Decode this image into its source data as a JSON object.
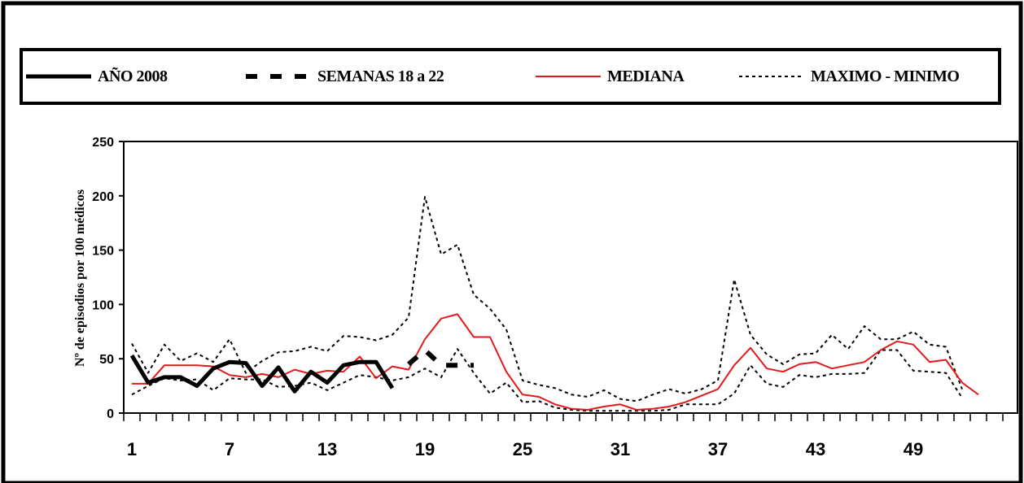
{
  "chart_data": {
    "type": "line",
    "ylabel": "Nº de episodios por 100 médicos",
    "xlabel": "",
    "ylim": [
      0,
      250
    ],
    "xlim": [
      1,
      53
    ],
    "y_ticks": [
      0,
      50,
      100,
      150,
      200,
      250
    ],
    "x_tick_labels": [
      "1",
      "7",
      "13",
      "19",
      "25",
      "31",
      "37",
      "43",
      "49"
    ],
    "grid": false,
    "legend_position": "top",
    "series": [
      {
        "name": "AÑO 2008",
        "style": "solid-thick",
        "color": "#000000",
        "x": [
          1,
          2,
          3,
          4,
          5,
          6,
          7,
          8,
          9,
          10,
          11,
          12,
          13,
          14,
          15,
          16,
          17
        ],
        "values": [
          53,
          28,
          33,
          33,
          25,
          41,
          47,
          46,
          25,
          42,
          20,
          38,
          28,
          44,
          47,
          47,
          23
        ]
      },
      {
        "name": "SEMANAS 18 a 22",
        "style": "dashed-thick",
        "color": "#000000",
        "x": [
          18,
          19,
          20,
          21,
          22
        ],
        "values": [
          45,
          58,
          44,
          44,
          44
        ]
      },
      {
        "name": "MEDIANA",
        "style": "solid-thin",
        "color": "#e31a1c",
        "x": [
          1,
          2,
          3,
          4,
          5,
          6,
          7,
          8,
          9,
          10,
          11,
          12,
          13,
          14,
          15,
          16,
          17,
          18,
          19,
          20,
          21,
          22,
          23,
          24,
          25,
          26,
          27,
          28,
          29,
          30,
          31,
          32,
          33,
          34,
          35,
          36,
          37,
          38,
          39,
          40,
          41,
          42,
          43,
          44,
          45,
          46,
          47,
          48,
          49,
          50,
          51,
          52,
          53
        ],
        "values": [
          27,
          27,
          44,
          44,
          44,
          43,
          35,
          33,
          36,
          33,
          40,
          36,
          39,
          38,
          52,
          32,
          43,
          40,
          68,
          87,
          91,
          70,
          70,
          38,
          17,
          15,
          8,
          4,
          3,
          6,
          8,
          3,
          4,
          6,
          10,
          16,
          22,
          44,
          60,
          41,
          38,
          45,
          47,
          41,
          44,
          47,
          58,
          66,
          63,
          47,
          49,
          28,
          17
        ]
      },
      {
        "name": "MAXIMO - MINIMO",
        "style": "dotted",
        "color": "#000000",
        "x": [
          1,
          2,
          3,
          4,
          5,
          6,
          7,
          8,
          9,
          10,
          11,
          12,
          13,
          14,
          15,
          16,
          17,
          18,
          19,
          20,
          21,
          22,
          23,
          24,
          25,
          26,
          27,
          28,
          29,
          30,
          31,
          32,
          33,
          34,
          35,
          36,
          37,
          38,
          39,
          40,
          41,
          42,
          43,
          44,
          45,
          46,
          47,
          48,
          49,
          50,
          51,
          52
        ],
        "values": [
          64,
          37,
          63,
          48,
          55,
          47,
          68,
          37,
          48,
          56,
          57,
          61,
          57,
          71,
          70,
          67,
          72,
          88,
          199,
          146,
          155,
          109,
          96,
          77,
          30,
          26,
          23,
          17,
          15,
          21,
          13,
          11,
          17,
          22,
          18,
          22,
          30,
          123,
          72,
          54,
          45,
          54,
          55,
          72,
          59,
          80,
          68,
          68,
          75,
          63,
          61,
          22
        ]
      },
      {
        "name": "MAXIMO - MINIMO (min)",
        "style": "dotted",
        "color": "#000000",
        "x": [
          1,
          2,
          3,
          4,
          5,
          6,
          7,
          8,
          9,
          10,
          11,
          12,
          13,
          14,
          15,
          16,
          17,
          18,
          19,
          20,
          21,
          22,
          23,
          24,
          25,
          26,
          27,
          28,
          29,
          30,
          31,
          32,
          33,
          34,
          35,
          36,
          37,
          38,
          39,
          40,
          41,
          42,
          43,
          44,
          45,
          46,
          47,
          48,
          49,
          50,
          51,
          52
        ],
        "values": [
          17,
          25,
          32,
          30,
          31,
          21,
          32,
          31,
          31,
          24,
          25,
          28,
          21,
          28,
          35,
          33,
          30,
          33,
          41,
          33,
          59,
          37,
          18,
          28,
          10,
          11,
          5,
          3,
          2,
          2,
          2,
          2,
          2,
          3,
          8,
          8,
          8,
          18,
          44,
          27,
          24,
          35,
          33,
          36,
          36,
          37,
          58,
          58,
          39,
          38,
          37,
          14
        ]
      }
    ]
  }
}
